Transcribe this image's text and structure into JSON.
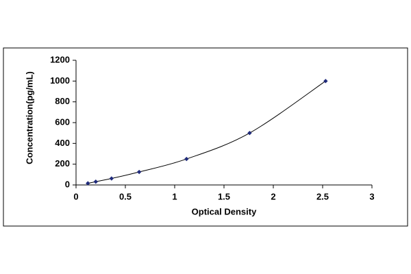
{
  "chart_data": {
    "type": "scatter",
    "x_label": "Optical Density",
    "y_label": "Concentration(pg/mL)",
    "x": [
      0.12,
      0.2,
      0.36,
      0.64,
      1.12,
      1.76,
      2.53
    ],
    "series": [
      {
        "color": "#1f2a7a",
        "values": [
          15.6,
          31.25,
          62.5,
          125,
          250,
          500,
          1000
        ]
      }
    ],
    "line": true,
    "xlim": [
      0,
      3
    ],
    "xticks": [
      0,
      0.5,
      1,
      1.5,
      2,
      2.5,
      3
    ],
    "ylim": [
      0,
      1200
    ],
    "yticks": [
      0,
      200,
      400,
      600,
      800,
      1000,
      1200
    ],
    "grid": false
  }
}
